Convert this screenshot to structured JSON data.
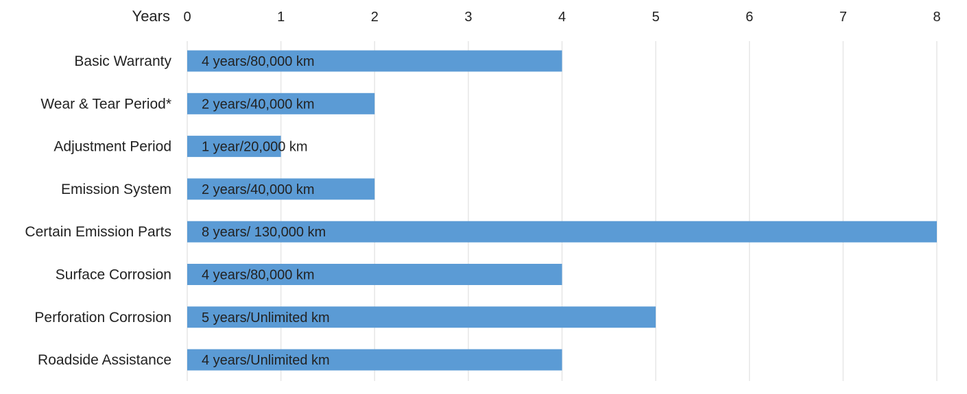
{
  "chart_data": {
    "type": "bar",
    "orientation": "horizontal",
    "title": "",
    "xlabel": "Years",
    "ylabel": "",
    "xlim": [
      0,
      8
    ],
    "x_ticks": [
      0,
      1,
      2,
      3,
      4,
      5,
      6,
      7,
      8
    ],
    "x_axis_position": "top",
    "grid": true,
    "legend": "none",
    "categories": [
      "Basic Warranty",
      "Wear & Tear Period*",
      "Adjustment Period",
      "Emission System",
      "Certain Emission Parts",
      "Surface Corrosion",
      "Perforation Corrosion",
      "Roadside Assistance"
    ],
    "values": [
      4,
      2,
      1,
      2,
      8,
      4,
      5,
      4
    ],
    "data_labels": [
      "4 years/80,000 km",
      "2 years/40,000 km",
      "1 year/20,000 km",
      "2 years/40,000 km",
      "8 years/ 130,000 km",
      "4 years/80,000 km",
      "5 years/Unlimited km",
      "4 years/Unlimited km"
    ],
    "colors": {
      "bar": "#5b9bd5",
      "grid": "#e6e6e6",
      "text": "#222222"
    }
  }
}
